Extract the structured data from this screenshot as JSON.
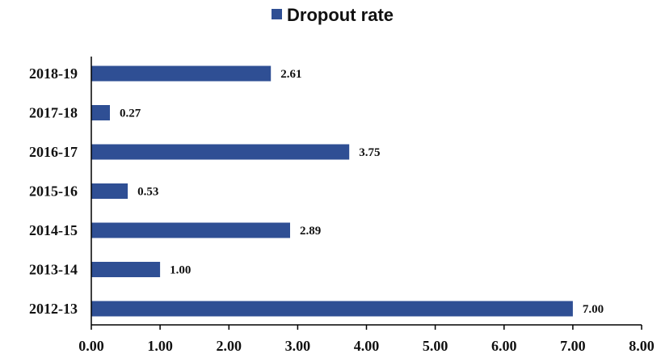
{
  "chart_data": {
    "type": "bar",
    "orientation": "horizontal",
    "categories": [
      "2018-19",
      "2017-18",
      "2016-17",
      "2015-16",
      "2014-15",
      "2013-14",
      "2012-13"
    ],
    "series": [
      {
        "name": "Dropout rate",
        "values": [
          2.61,
          0.27,
          3.75,
          0.53,
          2.89,
          1.0,
          7.0
        ],
        "data_labels": [
          "2.61",
          "0.27",
          "3.75",
          "0.53",
          "2.89",
          "1.00",
          "7.00"
        ]
      }
    ],
    "xlim": [
      0,
      8
    ],
    "x_ticks": [
      "0.00",
      "1.00",
      "2.00",
      "3.00",
      "4.00",
      "5.00",
      "6.00",
      "7.00",
      "8.00"
    ],
    "legend_position": "top",
    "grid": false,
    "colors": {
      "bar": "#2F4F94",
      "axis": "#000000",
      "text": "#111111"
    }
  }
}
